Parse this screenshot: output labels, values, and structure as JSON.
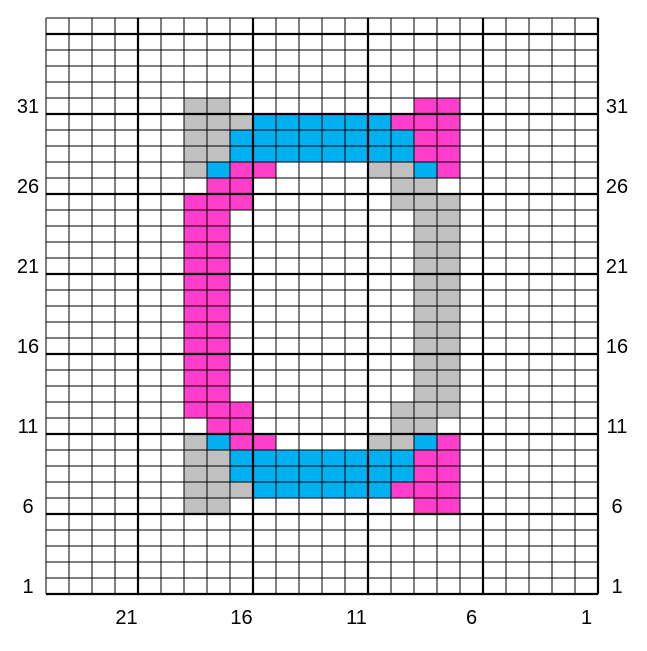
{
  "chart_data": {
    "type": "heatmap",
    "columns": 24,
    "rows": 36,
    "column_numbering": "right-to-left",
    "row_numbering": "bottom-to-top",
    "major_grid_every": 5,
    "palette": {
      ".": "#ffffff",
      "P": "#ff3fcc",
      "B": "#00b0f0",
      "G": "#c0c0c0"
    },
    "row_labels": [
      "1",
      "6",
      "11",
      "16",
      "21",
      "26",
      "31"
    ],
    "column_labels": [
      "21",
      "16",
      "11",
      "6",
      "1"
    ],
    "pattern_rows_top_to_bottom": [
      "........................",
      "........................",
      "........................",
      "........................",
      "........................",
      "......GG........PP......",
      "......GGGBBBBBBPPP......",
      "......GGBBBBBBBBPP......",
      "......GGBBBBBBBBPP......",
      "......GBPP....GGBP......",
      ".......PP......GG.......",
      "......PPP......GGG......",
      "......PP........GG......",
      "......PP........GG......",
      "......PP........GG......",
      "......PP........GG......",
      "......PP........GG......",
      "......PP........GG......",
      "......PP........GG......",
      "......PP........GG......",
      "......PP........GG......",
      "......PP........GG......",
      "......PP........GG......",
      "......PP........GG......",
      "......PPP......GGG......",
      ".......PP......GG.......",
      "......GBPP....GGBP......",
      "......GGBBBBBBBBPP......",
      "......GGBBBBBBBBPP......",
      "......GGGBBBBBBPPP......",
      "......GG........PP......",
      "........................",
      "........................",
      "........................",
      "........................",
      "........................"
    ]
  }
}
